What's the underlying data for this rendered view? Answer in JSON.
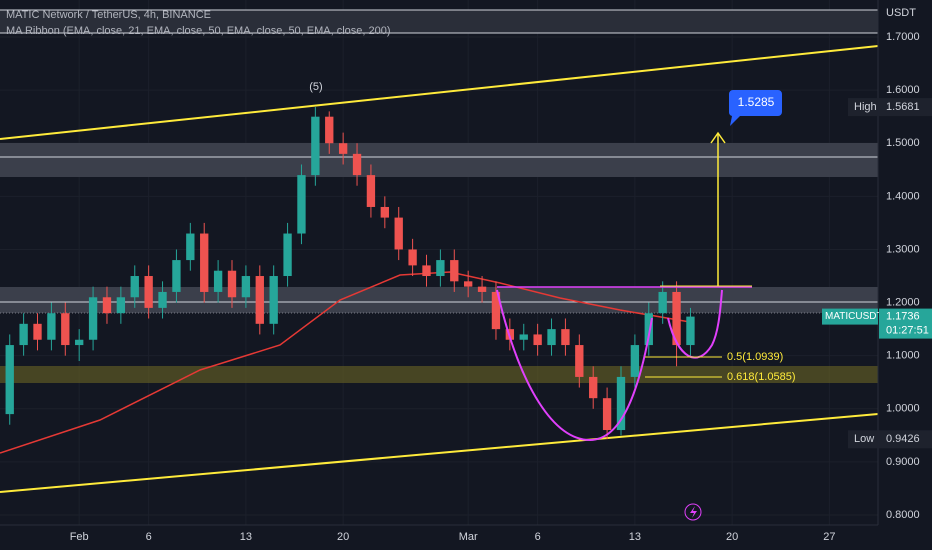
{
  "chart_data": {
    "type": "candlestick",
    "title": "MATIC Network / TetherUS, 4h, BINANCE",
    "subtitle": "MA Ribbon (EMA, close, 21, EMA, close, 50, EMA, close, 50, EMA, close, 200)",
    "currency": "USDT",
    "x": [
      -5,
      -4,
      -3,
      -2,
      -1,
      0,
      1,
      2,
      3,
      4,
      5,
      6,
      7,
      8,
      9,
      10,
      11,
      12,
      13,
      14,
      15,
      16,
      17,
      18,
      19,
      20,
      21,
      22,
      23,
      24,
      25,
      26,
      27,
      28,
      29,
      30,
      31,
      32,
      33,
      34,
      35,
      36,
      37,
      38,
      39,
      40,
      41,
      42,
      43,
      44
    ],
    "open": [
      0.99,
      1.12,
      1.16,
      1.13,
      1.18,
      1.12,
      1.13,
      1.21,
      1.18,
      1.21,
      1.25,
      1.19,
      1.22,
      1.28,
      1.33,
      1.22,
      1.26,
      1.21,
      1.25,
      1.16,
      1.25,
      1.33,
      1.44,
      1.55,
      1.5,
      1.48,
      1.44,
      1.38,
      1.36,
      1.3,
      1.27,
      1.25,
      1.28,
      1.24,
      1.23,
      1.22,
      1.15,
      1.13,
      1.14,
      1.12,
      1.15,
      1.12,
      1.06,
      1.02,
      0.96,
      1.06,
      1.12,
      1.18,
      1.22,
      1.12
    ],
    "high": [
      1.14,
      1.18,
      1.18,
      1.2,
      1.2,
      1.15,
      1.23,
      1.23,
      1.23,
      1.27,
      1.27,
      1.24,
      1.3,
      1.35,
      1.35,
      1.28,
      1.28,
      1.27,
      1.27,
      1.27,
      1.35,
      1.46,
      1.5681,
      1.56,
      1.52,
      1.5,
      1.46,
      1.4,
      1.38,
      1.32,
      1.29,
      1.3,
      1.3,
      1.26,
      1.25,
      1.24,
      1.17,
      1.16,
      1.16,
      1.17,
      1.17,
      1.14,
      1.08,
      1.04,
      1.08,
      1.14,
      1.2,
      1.24,
      1.24,
      1.19
    ],
    "low": [
      0.97,
      1.1,
      1.11,
      1.11,
      1.1,
      1.09,
      1.11,
      1.16,
      1.16,
      1.19,
      1.17,
      1.17,
      1.2,
      1.26,
      1.2,
      1.2,
      1.19,
      1.19,
      1.14,
      1.14,
      1.23,
      1.31,
      1.42,
      1.48,
      1.46,
      1.42,
      1.36,
      1.34,
      1.28,
      1.25,
      1.23,
      1.23,
      1.22,
      1.21,
      1.2,
      1.13,
      1.11,
      1.11,
      1.1,
      1.1,
      1.1,
      1.04,
      1.0,
      0.9426,
      0.95,
      1.04,
      1.1,
      1.16,
      1.08,
      1.1
    ],
    "close": [
      1.12,
      1.16,
      1.13,
      1.18,
      1.12,
      1.13,
      1.21,
      1.18,
      1.21,
      1.25,
      1.19,
      1.22,
      1.28,
      1.33,
      1.22,
      1.26,
      1.21,
      1.25,
      1.16,
      1.25,
      1.33,
      1.44,
      1.55,
      1.5,
      1.48,
      1.44,
      1.38,
      1.36,
      1.3,
      1.27,
      1.25,
      1.28,
      1.24,
      1.23,
      1.22,
      1.15,
      1.13,
      1.14,
      1.12,
      1.15,
      1.12,
      1.06,
      1.02,
      0.96,
      1.06,
      1.12,
      1.18,
      1.22,
      1.12,
      1.1736
    ],
    "up_color": "#26a69a",
    "down_color": "#ef5350",
    "xlim": [
      -5.7,
      57.5
    ],
    "xticks": [
      {
        "value": 0,
        "label": "Feb"
      },
      {
        "value": 5,
        "label": "6"
      },
      {
        "value": 12,
        "label": "13"
      },
      {
        "value": 19,
        "label": "20"
      },
      {
        "value": 28,
        "label": "Mar"
      },
      {
        "value": 33,
        "label": "6"
      },
      {
        "value": 40,
        "label": "13"
      },
      {
        "value": 47,
        "label": "20"
      },
      {
        "value": 54,
        "label": "27"
      }
    ],
    "ylim": [
      0.7812,
      1.7697
    ],
    "yticks": [
      {
        "value": 0.8,
        "label": "0.8000"
      },
      {
        "value": 0.9,
        "label": "0.9000"
      },
      {
        "value": 1.0,
        "label": "1.0000"
      },
      {
        "value": 1.1,
        "label": "1.1000"
      },
      {
        "value": 1.2,
        "label": "1.2000"
      },
      {
        "value": 1.3,
        "label": "1.3000"
      },
      {
        "value": 1.4,
        "label": "1.4000"
      },
      {
        "value": 1.5,
        "label": "1.5000"
      },
      {
        "value": 1.6,
        "label": "1.6000"
      },
      {
        "value": 1.7,
        "label": "1.7000"
      }
    ],
    "high_marker": {
      "label": "High",
      "value": 1.5681
    },
    "low_marker": {
      "label": "Low",
      "value": 0.9426
    },
    "last_price": {
      "symbol": "MATICUSDT",
      "value": 1.1736,
      "countdown": "01:27:51"
    },
    "annotations": {
      "wave": "(5)",
      "target": "1.5285",
      "fib_05": "0.5(1.0939)",
      "fib_0618": "0.618(1.0585)"
    }
  }
}
